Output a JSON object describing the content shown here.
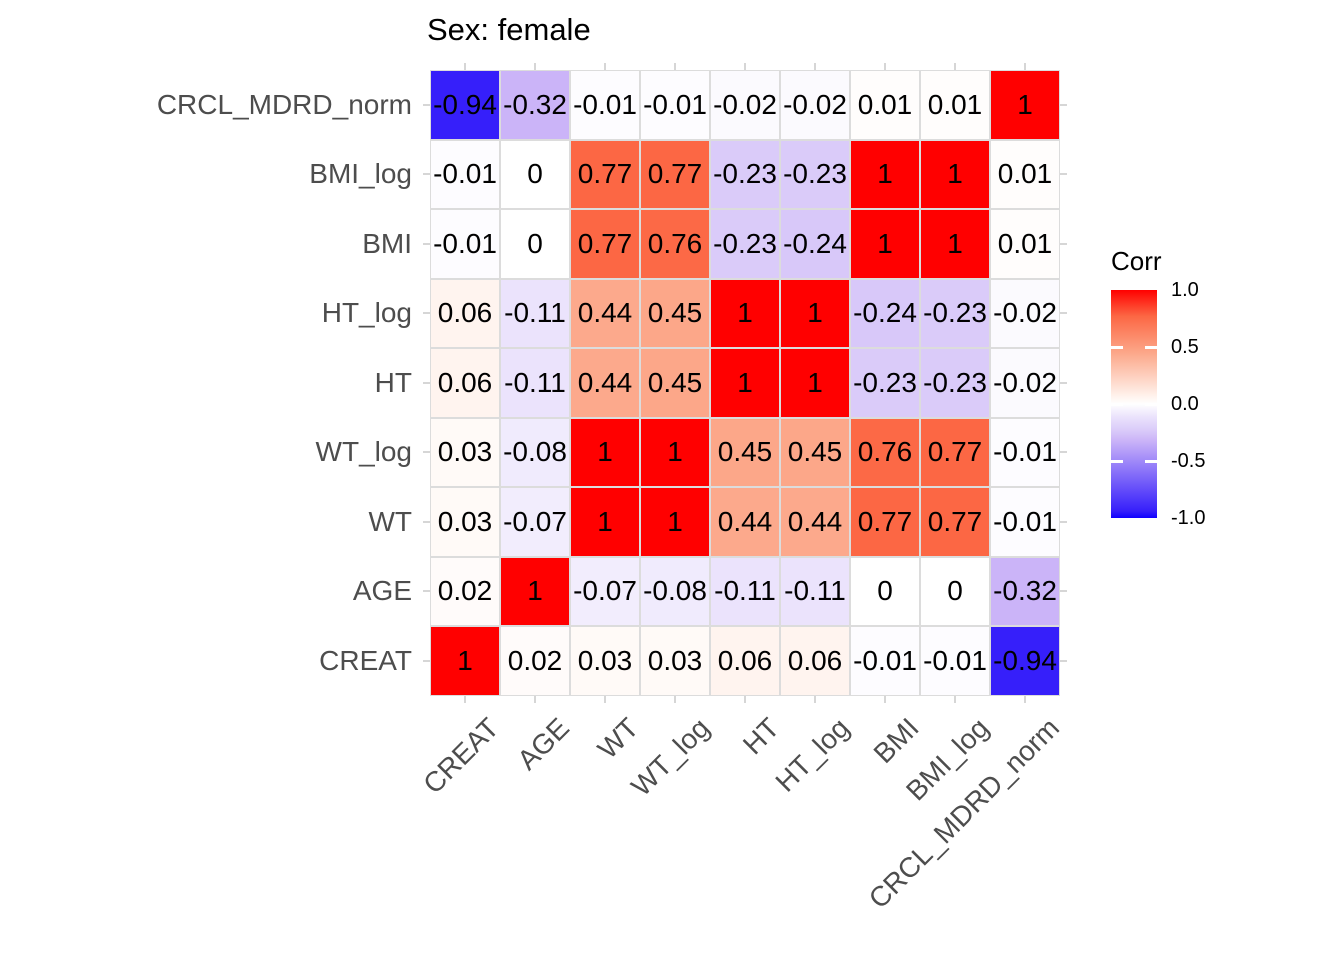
{
  "chart_data": {
    "type": "heatmap",
    "title": "Sex: female",
    "x_categories": [
      "CREAT",
      "AGE",
      "WT",
      "WT_log",
      "HT",
      "HT_log",
      "BMI",
      "BMI_log",
      "CRCL_MDRD_norm"
    ],
    "y_categories": [
      "CRCL_MDRD_norm",
      "BMI_log",
      "BMI",
      "HT_log",
      "HT",
      "WT_log",
      "WT",
      "AGE",
      "CREAT"
    ],
    "matrix": [
      [
        -0.94,
        -0.32,
        -0.01,
        -0.01,
        -0.02,
        -0.02,
        0.01,
        0.01,
        1
      ],
      [
        -0.01,
        0,
        0.77,
        0.77,
        -0.23,
        -0.23,
        1,
        1,
        0.01
      ],
      [
        -0.01,
        0,
        0.77,
        0.76,
        -0.23,
        -0.24,
        1,
        1,
        0.01
      ],
      [
        0.06,
        -0.11,
        0.44,
        0.45,
        1,
        1,
        -0.24,
        -0.23,
        -0.02
      ],
      [
        0.06,
        -0.11,
        0.44,
        0.45,
        1,
        1,
        -0.23,
        -0.23,
        -0.02
      ],
      [
        0.03,
        -0.08,
        1,
        1,
        0.45,
        0.45,
        0.76,
        0.77,
        -0.01
      ],
      [
        0.03,
        -0.07,
        1,
        1,
        0.44,
        0.44,
        0.77,
        0.77,
        -0.01
      ],
      [
        0.02,
        1,
        -0.07,
        -0.08,
        -0.11,
        -0.11,
        0,
        0,
        -0.32
      ],
      [
        1,
        0.02,
        0.03,
        0.03,
        0.06,
        0.06,
        -0.01,
        -0.01,
        -0.94
      ]
    ],
    "legend": {
      "title": "Corr",
      "ticks": [
        1.0,
        0.5,
        0.0,
        -0.5,
        -1.0
      ],
      "tick_labels": [
        "1.0",
        "0.5",
        "0.0",
        "-0.5",
        "-1.0"
      ],
      "limits": [
        -1,
        1
      ],
      "position": "right"
    },
    "colors": {
      "high": "#ff0000",
      "mid": "#ffffff",
      "low": "#0f00ff",
      "stops": [
        {
          "v": -1.0,
          "c": "#0f00ff"
        },
        {
          "v": -0.94,
          "c": "#361ffa"
        },
        {
          "v": -0.32,
          "c": "#cbb4f8"
        },
        {
          "v": -0.23,
          "c": "#dacbf9"
        },
        {
          "v": -0.11,
          "c": "#ebe3fc"
        },
        {
          "v": 0.0,
          "c": "#ffffff"
        },
        {
          "v": 0.06,
          "c": "#fff4ef"
        },
        {
          "v": 0.45,
          "c": "#fca789"
        },
        {
          "v": 0.77,
          "c": "#fc6744"
        },
        {
          "v": 1.0,
          "c": "#ff0000"
        }
      ]
    },
    "grid": true,
    "axis_text_color": "#4d4d4d",
    "x_label_angle": 45
  }
}
